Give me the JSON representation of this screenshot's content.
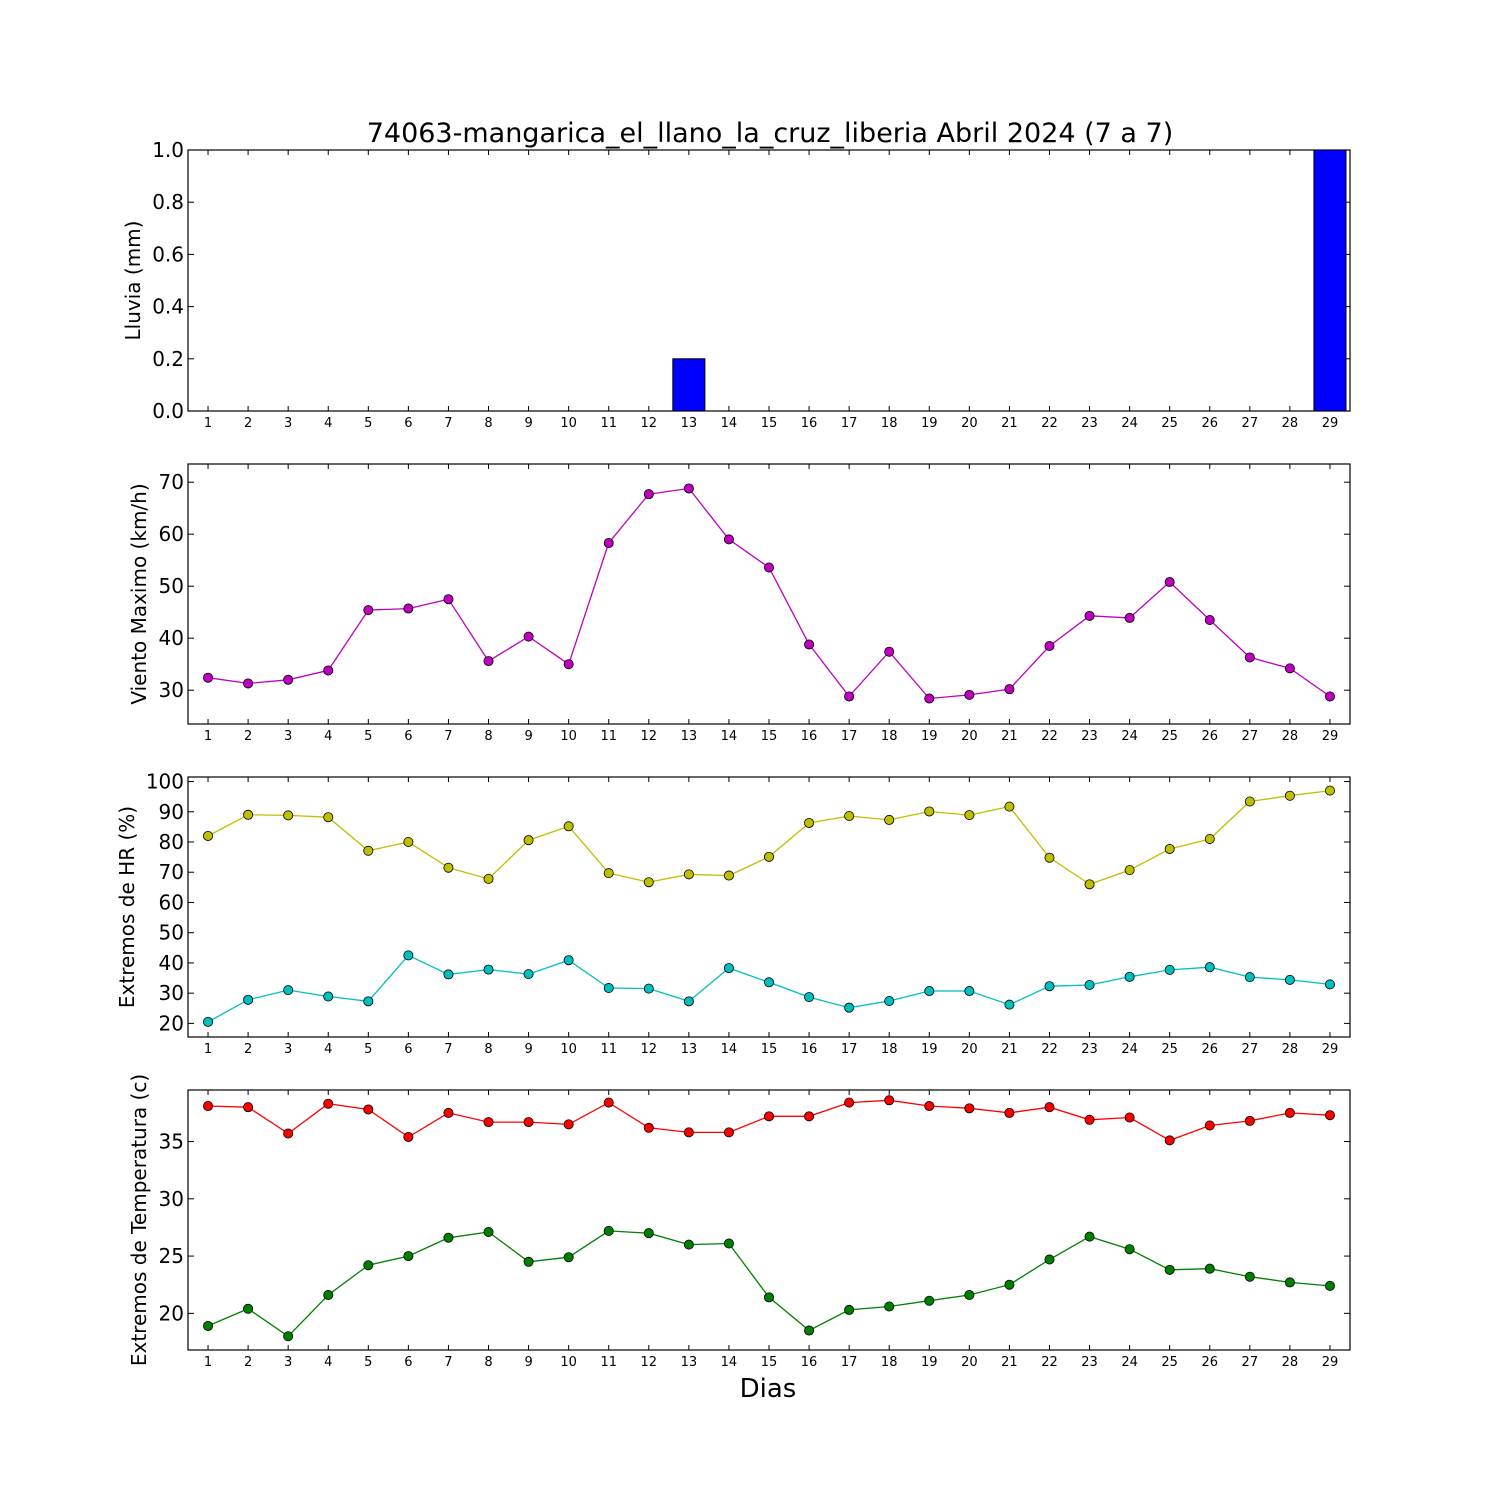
{
  "title": "74063-mangarica_el_llano_la_cruz_liberia Abril 2024  (7 a 7)",
  "xlabel": "Dias",
  "chart_data": [
    {
      "type": "bar",
      "ylabel": "Lluvia (mm)",
      "x": [
        1,
        2,
        3,
        4,
        5,
        6,
        7,
        8,
        9,
        10,
        11,
        12,
        13,
        14,
        15,
        16,
        17,
        18,
        19,
        20,
        21,
        22,
        23,
        24,
        25,
        26,
        27,
        28,
        29
      ],
      "xlim": [
        0.5,
        29.5
      ],
      "ylim": [
        0,
        1.0
      ],
      "yticks": [
        0.0,
        0.2,
        0.4,
        0.6,
        0.8,
        1.0
      ],
      "ytick_labels": [
        "0.0",
        "0.2",
        "0.4",
        "0.6",
        "0.8",
        "1.0"
      ],
      "series": [
        {
          "color": "#0000ff",
          "values": [
            0,
            0,
            0,
            0,
            0,
            0,
            0,
            0,
            0,
            0,
            0,
            0,
            0.2,
            0,
            0,
            0,
            0,
            0,
            0,
            0,
            0,
            0,
            0,
            0,
            0,
            0,
            0,
            0,
            1.0
          ]
        }
      ]
    },
    {
      "type": "line",
      "ylabel": "Viento Maximo (km/h)",
      "x": [
        1,
        2,
        3,
        4,
        5,
        6,
        7,
        8,
        9,
        10,
        11,
        12,
        13,
        14,
        15,
        16,
        17,
        18,
        19,
        20,
        21,
        22,
        23,
        24,
        25,
        26,
        27,
        28,
        29
      ],
      "xlim": [
        0.5,
        29.5
      ],
      "ylim": [
        23.5,
        73.5
      ],
      "yticks": [
        30,
        40,
        50,
        60,
        70
      ],
      "ytick_labels": [
        "30",
        "40",
        "50",
        "60",
        "70"
      ],
      "series": [
        {
          "color": "#bf00bf",
          "values": [
            32.4,
            31.3,
            32.0,
            33.8,
            45.4,
            45.7,
            47.5,
            35.6,
            40.3,
            35.0,
            58.3,
            67.7,
            68.8,
            59.0,
            53.6,
            38.8,
            28.8,
            37.4,
            28.4,
            29.1,
            30.2,
            38.5,
            44.3,
            43.9,
            50.8,
            43.5,
            36.3,
            34.2,
            28.8
          ]
        }
      ]
    },
    {
      "type": "line",
      "ylabel": "Extremos de HR (%)",
      "x": [
        1,
        2,
        3,
        4,
        5,
        6,
        7,
        8,
        9,
        10,
        11,
        12,
        13,
        14,
        15,
        16,
        17,
        18,
        19,
        20,
        21,
        22,
        23,
        24,
        25,
        26,
        27,
        28,
        29
      ],
      "xlim": [
        0.5,
        29.5
      ],
      "ylim": [
        15.5,
        101.5
      ],
      "yticks": [
        20,
        30,
        40,
        50,
        60,
        70,
        80,
        90,
        100
      ],
      "ytick_labels": [
        "20",
        "30",
        "40",
        "50",
        "60",
        "70",
        "80",
        "90",
        "100"
      ],
      "series": [
        {
          "color": "#bfbf00",
          "values": [
            82.0,
            89.0,
            88.8,
            88.2,
            77.1,
            80.0,
            71.5,
            67.8,
            80.6,
            85.2,
            69.7,
            66.7,
            69.3,
            68.9,
            75.1,
            86.3,
            88.6,
            87.3,
            90.1,
            88.9,
            91.7,
            74.8,
            66.0,
            70.7,
            77.7,
            81.0,
            93.4,
            95.3,
            97.0
          ]
        },
        {
          "color": "#00bfbf",
          "values": [
            20.5,
            27.8,
            31.0,
            28.9,
            27.3,
            42.5,
            36.2,
            37.8,
            36.3,
            40.9,
            31.7,
            31.5,
            27.3,
            38.3,
            33.6,
            28.7,
            25.2,
            27.4,
            30.7,
            30.7,
            26.2,
            32.3,
            32.7,
            35.4,
            37.7,
            38.6,
            35.3,
            34.4,
            32.9
          ]
        }
      ]
    },
    {
      "type": "line",
      "ylabel": "Extremos de Temperatura (c)",
      "x": [
        1,
        2,
        3,
        4,
        5,
        6,
        7,
        8,
        9,
        10,
        11,
        12,
        13,
        14,
        15,
        16,
        17,
        18,
        19,
        20,
        21,
        22,
        23,
        24,
        25,
        26,
        27,
        28,
        29
      ],
      "xlim": [
        0.5,
        29.5
      ],
      "ylim": [
        16.8,
        39.5
      ],
      "yticks": [
        20,
        25,
        30,
        35
      ],
      "ytick_labels": [
        "20",
        "25",
        "30",
        "35"
      ],
      "series": [
        {
          "color": "#ff0000",
          "values": [
            38.1,
            38.0,
            35.7,
            38.3,
            37.8,
            35.4,
            37.5,
            36.7,
            36.7,
            36.5,
            38.4,
            36.2,
            35.8,
            35.8,
            37.2,
            37.2,
            38.4,
            38.6,
            38.1,
            37.9,
            37.5,
            38.0,
            36.9,
            37.1,
            35.1,
            36.4,
            36.8,
            37.5,
            37.3
          ]
        },
        {
          "color": "#008000",
          "values": [
            18.9,
            20.4,
            18.0,
            21.6,
            24.2,
            25.0,
            26.6,
            27.1,
            24.5,
            24.9,
            27.2,
            27.0,
            26.0,
            26.1,
            21.4,
            18.5,
            20.3,
            20.6,
            21.1,
            21.6,
            22.5,
            24.7,
            26.7,
            25.6,
            23.8,
            23.9,
            23.2,
            22.7,
            22.4
          ]
        }
      ]
    }
  ]
}
